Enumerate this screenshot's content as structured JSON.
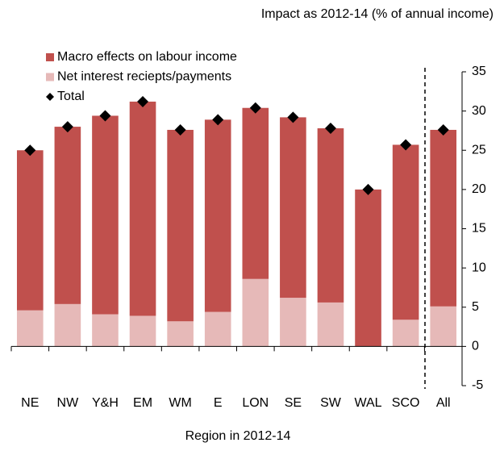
{
  "chart_data": {
    "type": "bar",
    "stacked": true,
    "title": "Impact as 2012-14 (% of annual income)",
    "x_label": "Region in 2012-14",
    "categories": [
      "NE",
      "NW",
      "Y&H",
      "EM",
      "WM",
      "E",
      "LON",
      "SE",
      "SW",
      "WAL",
      "SCO",
      "All"
    ],
    "series": [
      {
        "name": "Macro effects on labour income",
        "color": "#c0504d",
        "values": [
          20.4,
          22.6,
          25.3,
          27.3,
          24.4,
          24.5,
          21.8,
          23.0,
          22.2,
          20.0,
          22.3,
          22.5
        ]
      },
      {
        "name": "Net interest reciepts/payments",
        "color": "#e6b9b8",
        "values": [
          4.6,
          5.4,
          4.1,
          3.9,
          3.2,
          4.4,
          8.6,
          6.2,
          5.6,
          0,
          3.4,
          5.1
        ]
      },
      {
        "name": "Total",
        "type": "scatter",
        "color": "#000000",
        "values": [
          25.0,
          28.0,
          29.4,
          31.2,
          27.6,
          28.9,
          30.4,
          29.2,
          27.8,
          20.0,
          25.7,
          27.6
        ]
      }
    ],
    "ylim": [
      -5,
      35
    ],
    "yticks": [
      -5,
      0,
      5,
      10,
      15,
      20,
      25,
      30,
      35
    ],
    "grid": false,
    "legend": "upper left"
  }
}
